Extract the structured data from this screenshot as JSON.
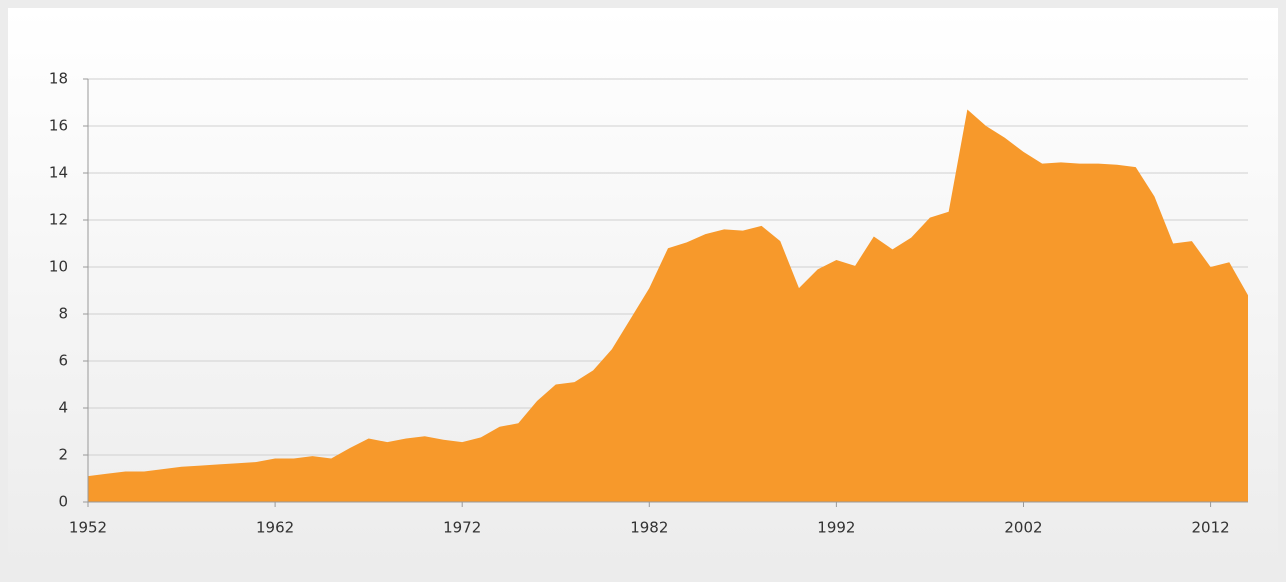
{
  "chart_data": {
    "type": "area",
    "x": [
      1952,
      1953,
      1954,
      1955,
      1956,
      1957,
      1958,
      1959,
      1960,
      1961,
      1962,
      1963,
      1964,
      1965,
      1966,
      1967,
      1968,
      1969,
      1970,
      1971,
      1972,
      1973,
      1974,
      1975,
      1976,
      1977,
      1978,
      1979,
      1980,
      1981,
      1982,
      1983,
      1984,
      1985,
      1986,
      1987,
      1988,
      1989,
      1990,
      1991,
      1992,
      1993,
      1994,
      1995,
      1996,
      1997,
      1998,
      1999,
      2000,
      2001,
      2002,
      2003,
      2004,
      2005,
      2006,
      2007,
      2008,
      2009,
      2010,
      2011,
      2012,
      2013,
      2014
    ],
    "values": [
      1.1,
      1.2,
      1.3,
      1.3,
      1.4,
      1.5,
      1.55,
      1.6,
      1.65,
      1.7,
      1.85,
      1.85,
      1.95,
      1.85,
      2.3,
      2.7,
      2.55,
      2.7,
      2.8,
      2.65,
      2.55,
      2.75,
      3.2,
      3.35,
      4.3,
      5.0,
      5.1,
      5.6,
      6.5,
      7.8,
      9.1,
      10.8,
      11.05,
      11.4,
      11.6,
      11.55,
      11.75,
      11.1,
      9.1,
      9.9,
      10.3,
      10.05,
      11.3,
      10.75,
      11.25,
      12.1,
      12.35,
      16.7,
      16.0,
      15.5,
      14.9,
      14.4,
      14.45,
      14.4,
      14.4,
      14.35,
      14.25,
      13.0,
      11.0,
      11.1,
      10.0,
      10.2,
      8.8
    ],
    "color": "#f7992b",
    "xlim": [
      1952,
      2014
    ],
    "xticks": [
      1952,
      1962,
      1972,
      1982,
      1992,
      2002,
      2012
    ],
    "ylim": [
      0,
      18
    ],
    "yticks": [
      0,
      2,
      4,
      6,
      8,
      10,
      12,
      14,
      16,
      18
    ],
    "grid": true
  }
}
